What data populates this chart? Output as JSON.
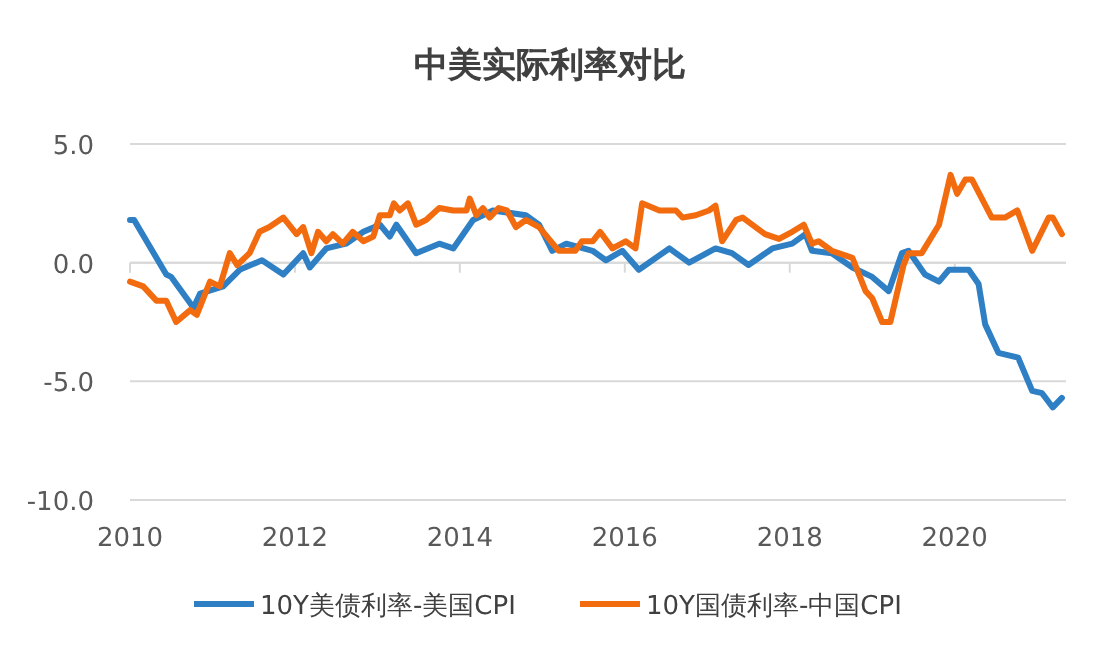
{
  "chart_data": {
    "type": "line",
    "title": "中美实际利率对比",
    "xlim": [
      2010,
      2021.35
    ],
    "xticks": [
      2010,
      2012,
      2014,
      2016,
      2018,
      2020
    ],
    "ylim": [
      -10,
      5
    ],
    "yticks": [
      {
        "value": 5,
        "label": "5.0"
      },
      {
        "value": 0,
        "label": "0.0"
      },
      {
        "value": -5,
        "label": "-5.0"
      },
      {
        "value": -10,
        "label": "-10.0"
      }
    ],
    "grid": "y",
    "legend": "bottom",
    "marker": "none",
    "line_style": "solid",
    "series": [
      {
        "name": "10Y美债利率-美国CPI",
        "color": "#2e7fc4",
        "x": [
          2010.0,
          2010.05,
          2010.44,
          2010.5,
          2010.77,
          2010.85,
          2011.13,
          2011.33,
          2011.6,
          2011.86,
          2012.1,
          2012.18,
          2012.38,
          2012.62,
          2012.83,
          2013.03,
          2013.15,
          2013.23,
          2013.47,
          2013.75,
          2013.92,
          2014.16,
          2014.4,
          2014.8,
          2014.96,
          2015.12,
          2015.29,
          2015.61,
          2015.77,
          2015.97,
          2016.17,
          2016.54,
          2016.78,
          2017.1,
          2017.3,
          2017.5,
          2017.79,
          2018.03,
          2018.19,
          2018.27,
          2018.51,
          2018.76,
          2019.0,
          2019.2,
          2019.36,
          2019.44,
          2019.64,
          2019.81,
          2019.93,
          2020.17,
          2020.29,
          2020.37,
          2020.53,
          2020.77,
          2020.94,
          2021.06,
          2021.19,
          2021.3
        ],
        "values": [
          1.8,
          1.8,
          -0.5,
          -0.6,
          -1.9,
          -1.3,
          -1.0,
          -0.3,
          0.1,
          -0.5,
          0.4,
          -0.2,
          0.6,
          0.8,
          1.3,
          1.6,
          1.1,
          1.6,
          0.4,
          0.8,
          0.6,
          1.8,
          2.2,
          2.0,
          1.6,
          0.5,
          0.8,
          0.5,
          0.1,
          0.5,
          -0.3,
          0.6,
          0.0,
          0.6,
          0.4,
          -0.1,
          0.6,
          0.8,
          1.2,
          0.5,
          0.4,
          -0.2,
          -0.6,
          -1.2,
          0.4,
          0.5,
          -0.5,
          -0.8,
          -0.3,
          -0.3,
          -0.9,
          -2.6,
          -3.8,
          -4.0,
          -5.4,
          -5.5,
          -6.1,
          -5.7
        ]
      },
      {
        "name": "10Y国债利率-中国CPI",
        "color": "#f26b0f",
        "x": [
          2010.0,
          2010.16,
          2010.32,
          2010.44,
          2010.56,
          2010.73,
          2010.81,
          2010.97,
          2011.09,
          2011.21,
          2011.3,
          2011.45,
          2011.57,
          2011.69,
          2011.86,
          2012.02,
          2012.1,
          2012.2,
          2012.28,
          2012.38,
          2012.46,
          2012.58,
          2012.7,
          2012.83,
          2012.95,
          2013.03,
          2013.15,
          2013.2,
          2013.27,
          2013.37,
          2013.47,
          2013.59,
          2013.75,
          2013.92,
          2014.08,
          2014.12,
          2014.2,
          2014.28,
          2014.36,
          2014.47,
          2014.57,
          2014.68,
          2014.8,
          2014.96,
          2015.2,
          2015.4,
          2015.48,
          2015.61,
          2015.7,
          2015.85,
          2016.01,
          2016.13,
          2016.21,
          2016.42,
          2016.62,
          2016.7,
          2016.86,
          2017.02,
          2017.1,
          2017.18,
          2017.35,
          2017.43,
          2017.7,
          2017.87,
          2018.03,
          2018.17,
          2018.27,
          2018.35,
          2018.51,
          2018.76,
          2018.92,
          2019.0,
          2019.12,
          2019.22,
          2019.38,
          2019.44,
          2019.6,
          2019.81,
          2019.95,
          2020.03,
          2020.13,
          2020.21,
          2020.45,
          2020.61,
          2020.76,
          2020.94,
          2021.14,
          2021.19,
          2021.3
        ],
        "values": [
          -0.8,
          -1.0,
          -1.6,
          -1.6,
          -2.5,
          -2.0,
          -2.2,
          -0.8,
          -1.0,
          0.4,
          -0.1,
          0.4,
          1.3,
          1.5,
          1.9,
          1.2,
          1.5,
          0.4,
          1.3,
          0.9,
          1.2,
          0.8,
          1.3,
          0.9,
          1.1,
          2.0,
          2.0,
          2.5,
          2.2,
          2.5,
          1.6,
          1.8,
          2.3,
          2.2,
          2.2,
          2.7,
          2.0,
          2.3,
          1.9,
          2.3,
          2.2,
          1.5,
          1.8,
          1.5,
          0.5,
          0.5,
          0.9,
          0.9,
          1.3,
          0.6,
          0.9,
          0.6,
          2.5,
          2.2,
          2.2,
          1.9,
          2.0,
          2.2,
          2.4,
          0.9,
          1.8,
          1.9,
          1.2,
          1.0,
          1.3,
          1.6,
          0.8,
          0.9,
          0.5,
          0.2,
          -1.2,
          -1.5,
          -2.5,
          -2.5,
          -0.1,
          0.4,
          0.4,
          1.6,
          3.7,
          2.9,
          3.5,
          3.5,
          1.9,
          1.9,
          2.2,
          0.5,
          1.9,
          1.9,
          1.2
        ]
      }
    ]
  }
}
